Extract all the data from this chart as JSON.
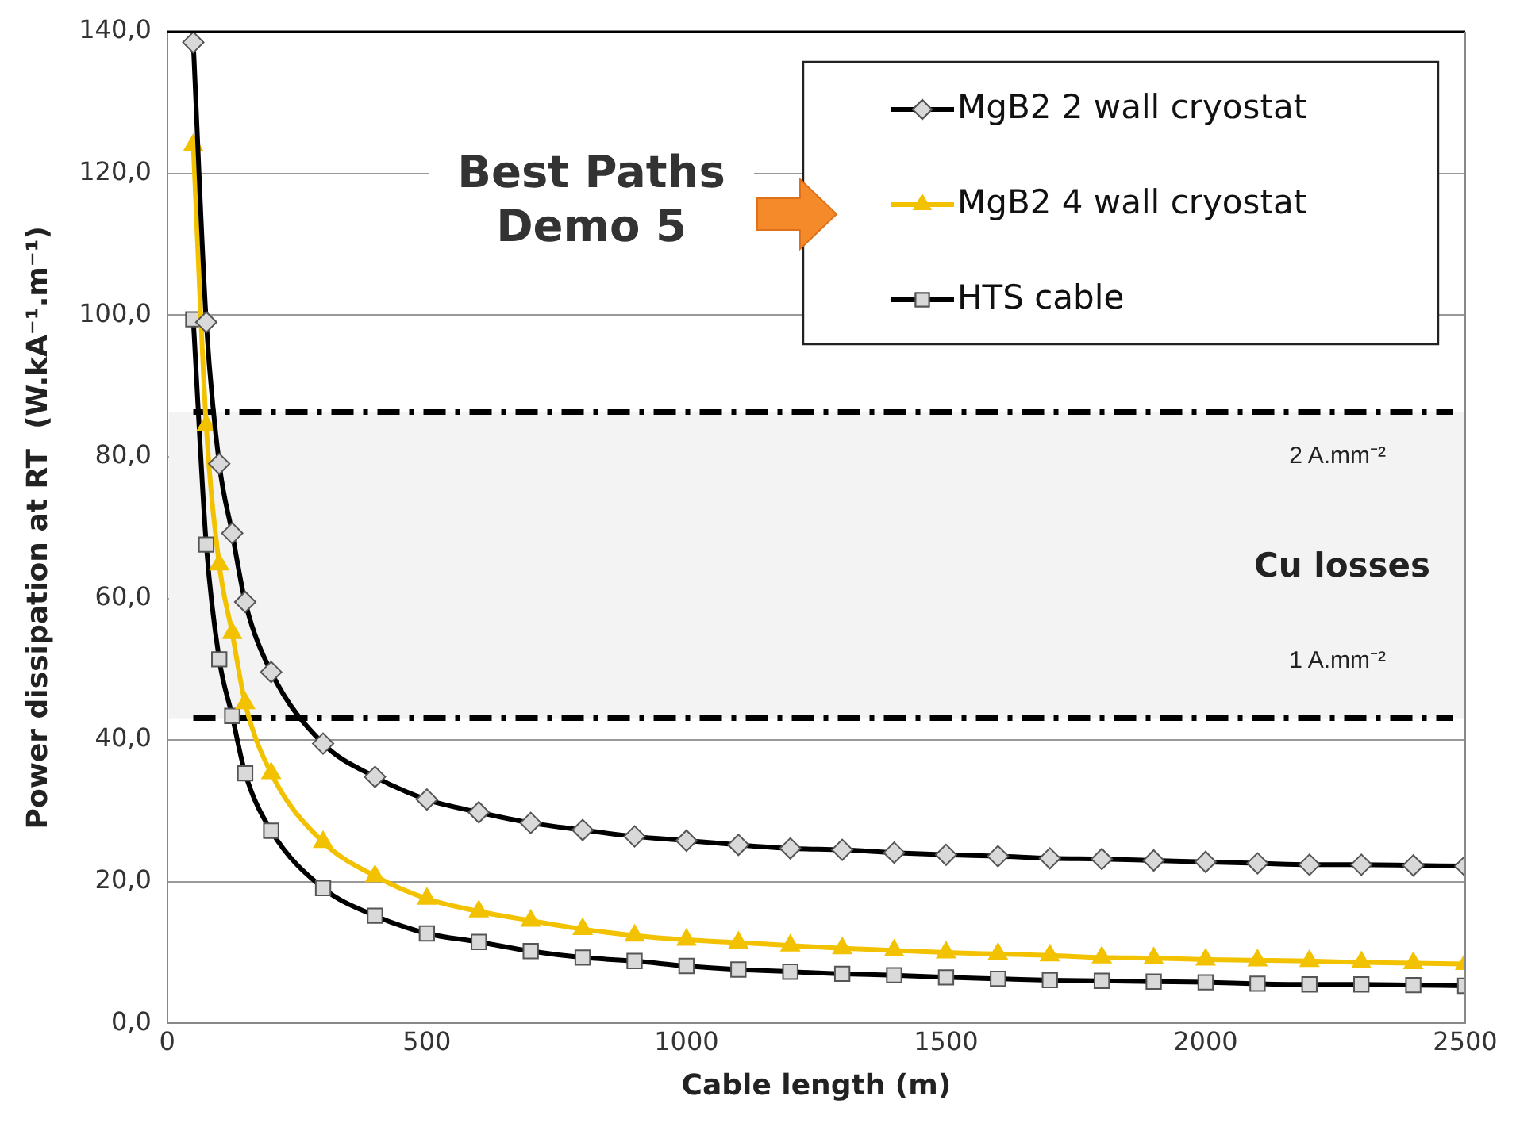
{
  "chart_data": {
    "type": "line",
    "xlabel": "Cable length (m)",
    "ylabel": "Power dissipation at RT  (W.kA⁻¹.m⁻¹)",
    "x": [
      50,
      75,
      100,
      125,
      150,
      200,
      300,
      400,
      500,
      600,
      700,
      800,
      900,
      1000,
      1100,
      1200,
      1300,
      1400,
      1500,
      1600,
      1700,
      1800,
      1900,
      2000,
      2100,
      2200,
      2300,
      2400,
      2500
    ],
    "series": [
      {
        "name": "MgB2 2 wall cryostat",
        "color": "#000000",
        "marker": "diamond",
        "values": [
          138.5,
          99,
          79,
          69.2,
          59.5,
          49.6,
          39.5,
          34.8,
          31.6,
          29.8,
          28.3,
          27.3,
          26.4,
          25.8,
          25.2,
          24.7,
          24.5,
          24.1,
          23.8,
          23.6,
          23.3,
          23.2,
          23.0,
          22.8,
          22.6,
          22.4,
          22.4,
          22.3,
          22.2
        ]
      },
      {
        "name": "MgB2 4 wall cryostat",
        "color": "#f2c200",
        "marker": "triangle",
        "values": [
          124,
          84.4,
          64.8,
          55.1,
          45.2,
          35.3,
          25.6,
          20.8,
          17.6,
          15.8,
          14.5,
          13.3,
          12.4,
          11.8,
          11.4,
          11.0,
          10.6,
          10.3,
          10.0,
          9.8,
          9.6,
          9.3,
          9.2,
          9.0,
          8.9,
          8.8,
          8.6,
          8.5,
          8.4
        ]
      },
      {
        "name": "HTS cable",
        "color": "#000000",
        "marker": "square",
        "values": [
          99.4,
          67.6,
          51.4,
          43.4,
          35.3,
          27.2,
          19.1,
          15.2,
          12.7,
          11.5,
          10.2,
          9.3,
          8.8,
          8.1,
          7.6,
          7.3,
          7.0,
          6.8,
          6.5,
          6.3,
          6.1,
          6.0,
          5.9,
          5.8,
          5.6,
          5.5,
          5.5,
          5.4,
          5.3
        ]
      }
    ],
    "xlim": [
      0,
      2500
    ],
    "xticks": [
      0,
      500,
      1000,
      1500,
      2000,
      2500
    ],
    "ylim": [
      0,
      140
    ],
    "yticks": [
      {
        "value": 0,
        "label": "0,0"
      },
      {
        "value": 20,
        "label": "20,0"
      },
      {
        "value": 40,
        "label": "40,0"
      },
      {
        "value": 60,
        "label": "60,0"
      },
      {
        "value": 80,
        "label": "80,0"
      },
      {
        "value": 100,
        "label": "100,0"
      },
      {
        "value": 120,
        "label": "120,0"
      },
      {
        "value": 140,
        "label": "140,0"
      }
    ],
    "ref_lines": [
      {
        "axis": "y",
        "value": 86.3,
        "label": "2 A.mm⁻²",
        "line_style": "dashed",
        "color": "#000000"
      },
      {
        "axis": "y",
        "value": 43.1,
        "label": "1 A.mm⁻²",
        "line_style": "dashed",
        "color": "#000000"
      }
    ],
    "bands": [
      {
        "axis": "y",
        "from": 43.1,
        "to": 86.3,
        "label": "Cu losses",
        "color": "#f3f3f3"
      }
    ],
    "annotations": [
      "Best Paths Demo 5"
    ],
    "grid": "y",
    "legend": "top right"
  }
}
